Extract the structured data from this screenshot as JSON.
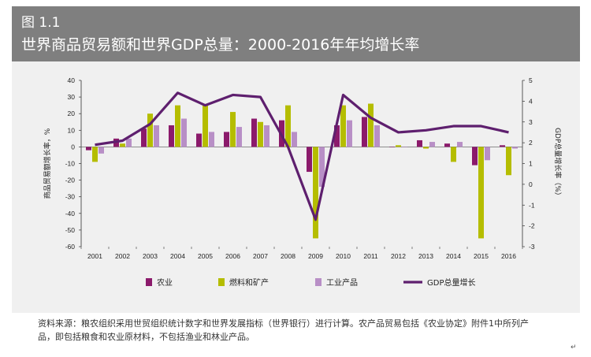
{
  "header": {
    "figure_label": "图 1.1",
    "title": "世界商品贸易额和世界GDP总量：2000-2016年年均增长率"
  },
  "chart_data": {
    "type": "bar+line",
    "categories": [
      "2001",
      "2002",
      "2003",
      "2004",
      "2005",
      "2006",
      "2007",
      "2008",
      "2009",
      "2010",
      "2011",
      "2012",
      "2013",
      "2014",
      "2015",
      "2016"
    ],
    "left_axis": {
      "label": "商品贸易额增长率，%",
      "ylim": [
        -60,
        40
      ],
      "ticks": [
        40,
        30,
        20,
        10,
        0,
        -10,
        -20,
        -30,
        -40,
        -50,
        -60
      ]
    },
    "right_axis": {
      "label": "GDP总量增长率（%）",
      "ylim": [
        -3,
        5
      ],
      "ticks": [
        5,
        4,
        3,
        2,
        1,
        0,
        -1,
        -2,
        -3
      ]
    },
    "series": [
      {
        "name": "农业",
        "type": "bar",
        "axis": "left",
        "color": "#8b1a6b",
        "values": [
          -2,
          5,
          11,
          13,
          8,
          9,
          17,
          16,
          -15,
          13,
          18,
          0,
          4,
          2,
          -11,
          1
        ]
      },
      {
        "name": "燃料和矿产",
        "type": "bar",
        "axis": "left",
        "color": "#b5bd00",
        "values": [
          -9,
          2,
          20,
          25,
          25,
          21,
          15,
          25,
          -55,
          25,
          26,
          1,
          -1,
          -9,
          -55,
          -17
        ]
      },
      {
        "name": "工业产品",
        "type": "bar",
        "axis": "left",
        "color": "#b88fc6",
        "values": [
          -4,
          5,
          13,
          17,
          9,
          12,
          13,
          9,
          -24,
          16,
          13,
          0,
          3,
          3,
          -8,
          -1
        ]
      },
      {
        "name": "GDP总量增长",
        "type": "line",
        "axis": "right",
        "color": "#5e1f6e",
        "values": [
          1.9,
          2.1,
          2.9,
          4.4,
          3.8,
          4.3,
          4.2,
          1.8,
          -1.7,
          4.3,
          3.2,
          2.5,
          2.6,
          2.8,
          2.8,
          2.5
        ]
      }
    ],
    "legend_position": "bottom",
    "grid": false
  },
  "source_note": "资料来源：粮农组织采用世贸组织统计数字和世界发展指标（世界银行）进行计算。农产品贸易包括《农业协定》附件1中所列产品，即包括粮食和农业原材料，不包括渔业和林业产品。",
  "return_mark": "↵"
}
